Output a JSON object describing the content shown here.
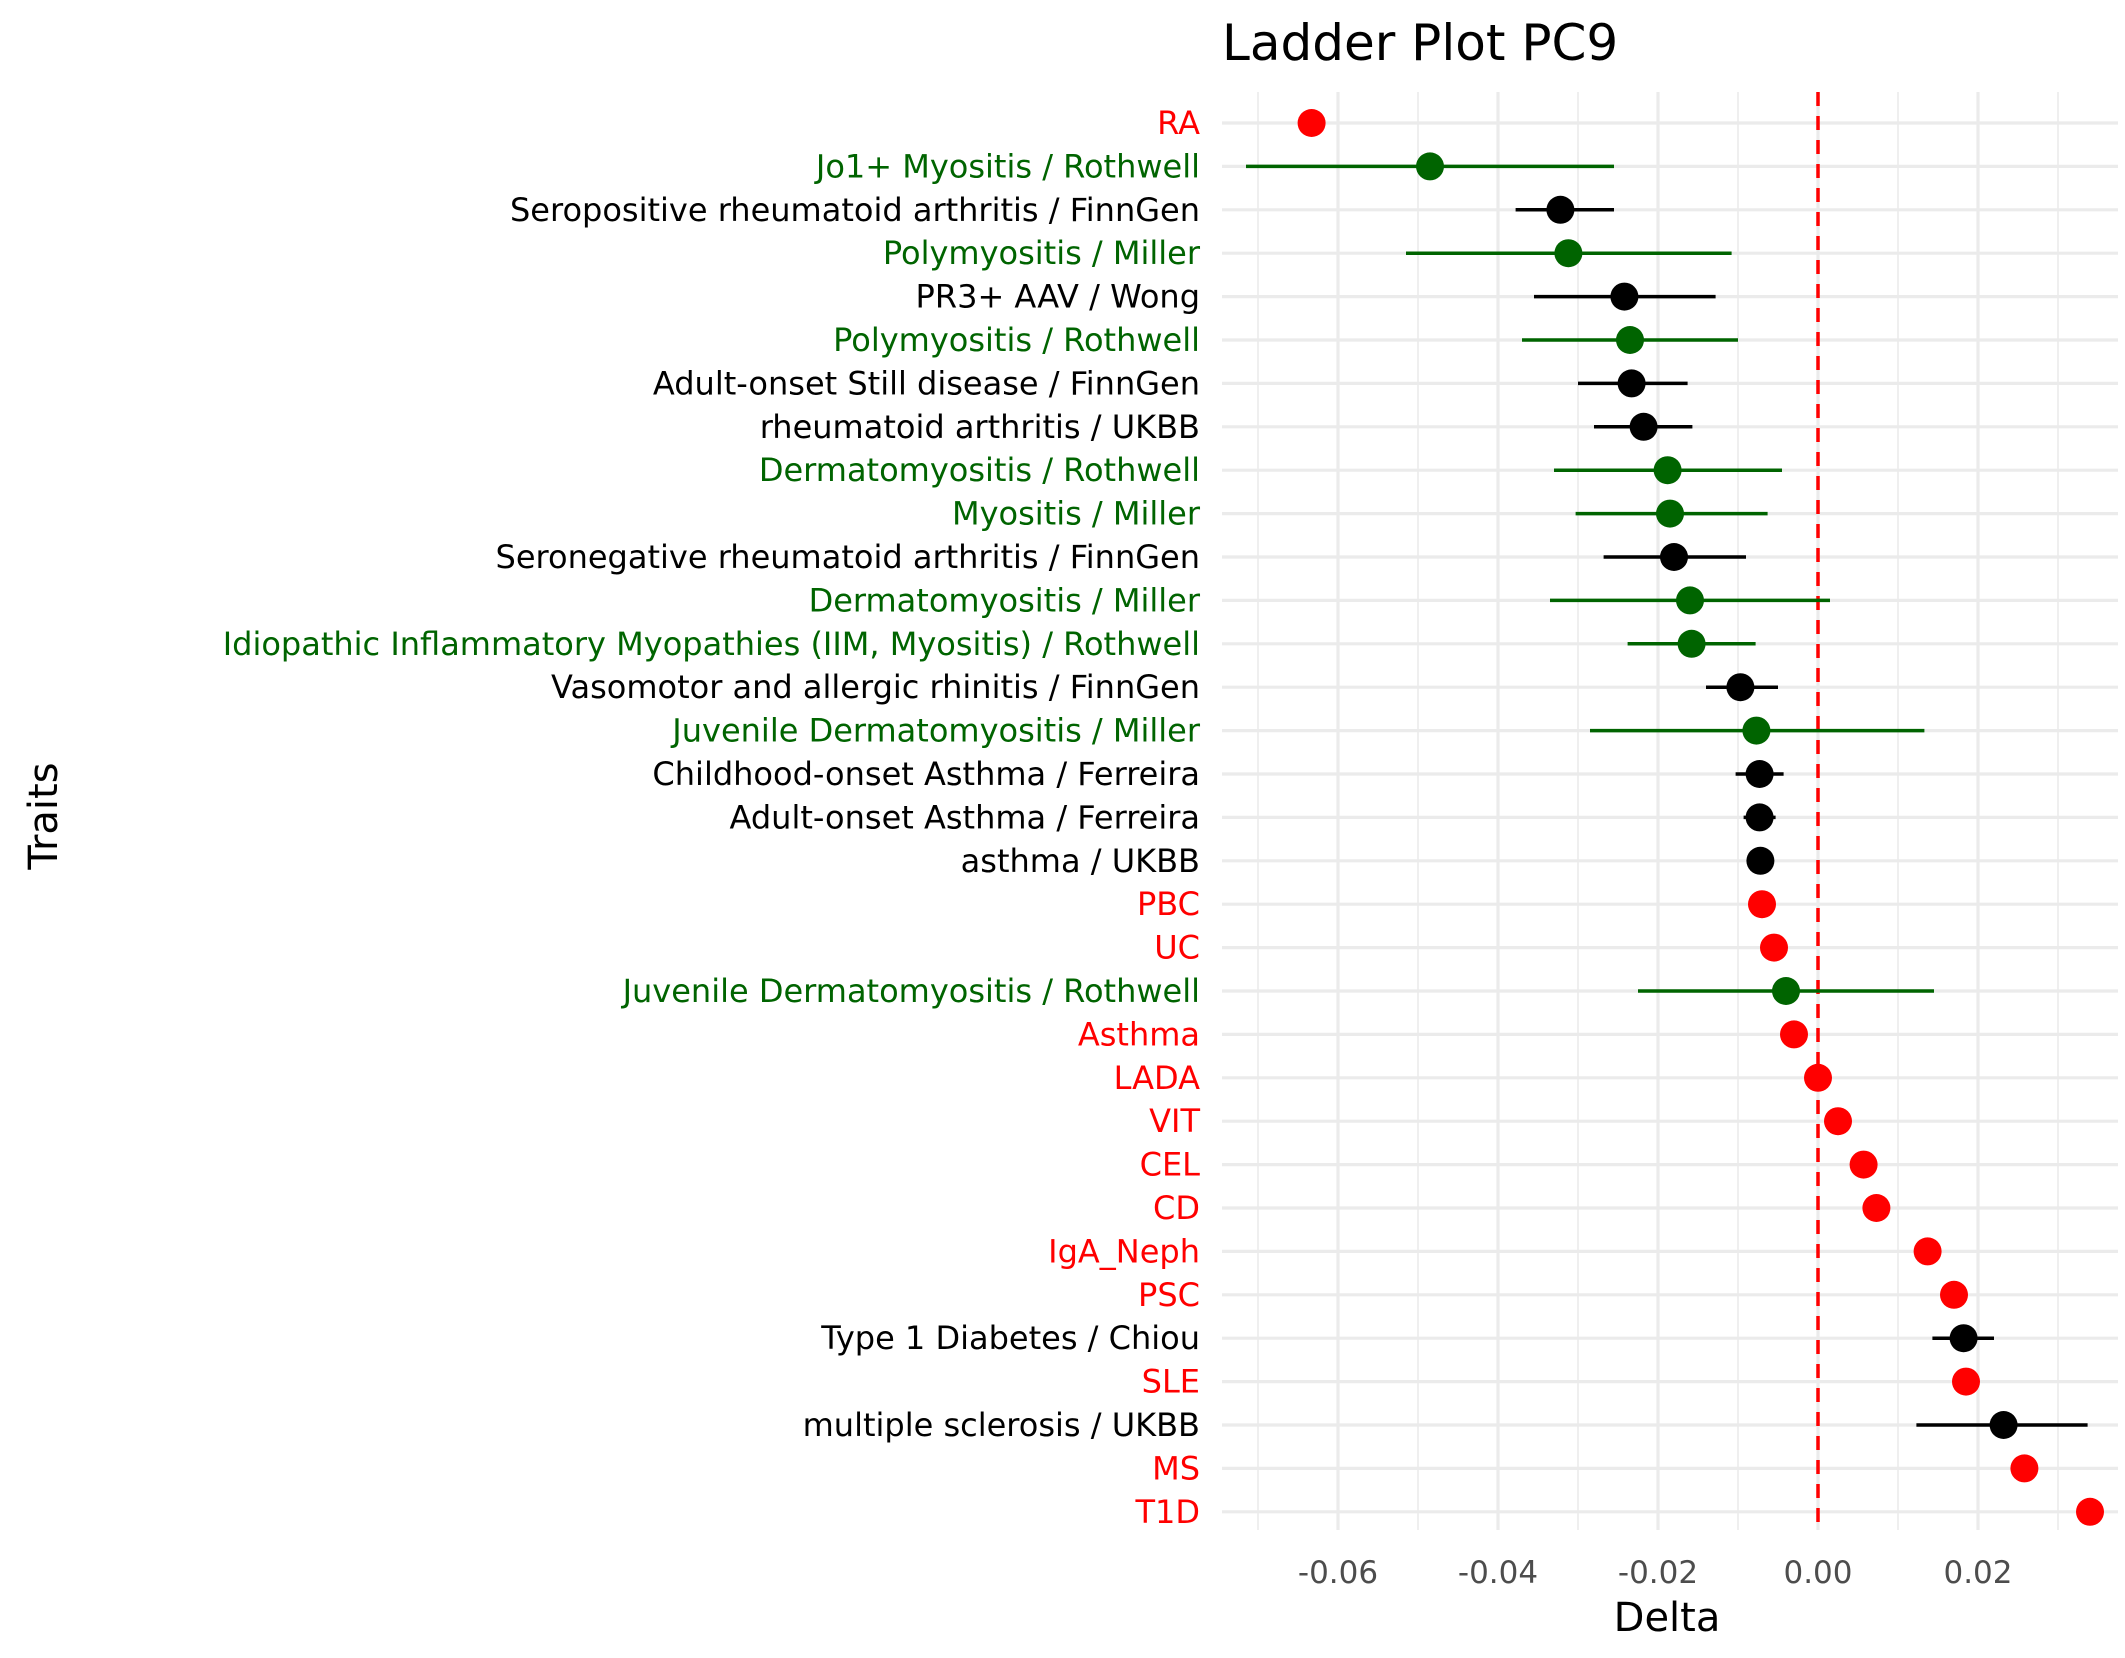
{
  "chart_data": {
    "type": "scatter",
    "title": "Ladder Plot PC9",
    "xlabel": "Delta",
    "ylabel": "Traits",
    "xlim": [
      -0.0745,
      0.0375
    ],
    "x_ticks": [
      -0.06,
      -0.04,
      -0.02,
      0.0,
      0.02
    ],
    "x_tick_labels": [
      "-0.06",
      "-0.04",
      "-0.02",
      "0.00",
      "0.02"
    ],
    "x_minor_ticks": [
      -0.07,
      -0.05,
      -0.03,
      -0.01,
      0.01,
      0.03
    ],
    "grid": true,
    "reference_line": {
      "x": 0,
      "style": "dashed",
      "color": "#ff0000"
    },
    "colors": {
      "red": "#ff0000",
      "green": "#006400",
      "black": "#000000"
    },
    "points": [
      {
        "label": "RA",
        "delta": -0.0633,
        "lo": null,
        "hi": null,
        "color": "red"
      },
      {
        "label": "Jo1+ Myositis / Rothwell",
        "delta": -0.0485,
        "lo": -0.0715,
        "hi": -0.0255,
        "color": "green"
      },
      {
        "label": "Seropositive rheumatoid arthritis / FinnGen",
        "delta": -0.0322,
        "lo": -0.0378,
        "hi": -0.0255,
        "color": "black"
      },
      {
        "label": "Polymyositis / Miller",
        "delta": -0.0312,
        "lo": -0.0515,
        "hi": -0.0108,
        "color": "green"
      },
      {
        "label": "PR3+ AAV / Wong",
        "delta": -0.0242,
        "lo": -0.0355,
        "hi": -0.0128,
        "color": "black"
      },
      {
        "label": "Polymyositis / Rothwell",
        "delta": -0.0235,
        "lo": -0.037,
        "hi": -0.01,
        "color": "green"
      },
      {
        "label": "Adult-onset Still disease / FinnGen",
        "delta": -0.0233,
        "lo": -0.03,
        "hi": -0.0163,
        "color": "black"
      },
      {
        "label": "rheumatoid arthritis / UKBB",
        "delta": -0.0218,
        "lo": -0.028,
        "hi": -0.0157,
        "color": "black"
      },
      {
        "label": "Dermatomyositis / Rothwell",
        "delta": -0.0188,
        "lo": -0.033,
        "hi": -0.0045,
        "color": "green"
      },
      {
        "label": "Myositis / Miller",
        "delta": -0.0185,
        "lo": -0.0303,
        "hi": -0.0063,
        "color": "green"
      },
      {
        "label": "Seronegative rheumatoid arthritis / FinnGen",
        "delta": -0.018,
        "lo": -0.0268,
        "hi": -0.009,
        "color": "black"
      },
      {
        "label": "Dermatomyositis / Miller",
        "delta": -0.016,
        "lo": -0.0335,
        "hi": 0.0015,
        "color": "green"
      },
      {
        "label": "Idiopathic Inflammatory Myopathies (IIM, Myositis) / Rothwell",
        "delta": -0.0158,
        "lo": -0.0238,
        "hi": -0.0078,
        "color": "green"
      },
      {
        "label": "Vasomotor and allergic rhinitis / FinnGen",
        "delta": -0.0097,
        "lo": -0.014,
        "hi": -0.005,
        "color": "black"
      },
      {
        "label": "Juvenile Dermatomyositis / Miller",
        "delta": -0.0077,
        "lo": -0.0285,
        "hi": 0.0133,
        "color": "green"
      },
      {
        "label": "Childhood-onset Asthma / Ferreira",
        "delta": -0.0073,
        "lo": -0.0103,
        "hi": -0.0043,
        "color": "black"
      },
      {
        "label": "Adult-onset Asthma / Ferreira",
        "delta": -0.0073,
        "lo": -0.0093,
        "hi": -0.0053,
        "color": "black"
      },
      {
        "label": "asthma / UKBB",
        "delta": -0.0072,
        "lo": -0.0082,
        "hi": -0.0062,
        "color": "black"
      },
      {
        "label": "PBC",
        "delta": -0.007,
        "lo": null,
        "hi": null,
        "color": "red"
      },
      {
        "label": "UC",
        "delta": -0.0055,
        "lo": null,
        "hi": null,
        "color": "red"
      },
      {
        "label": "Juvenile Dermatomyositis / Rothwell",
        "delta": -0.004,
        "lo": -0.0225,
        "hi": 0.0145,
        "color": "green"
      },
      {
        "label": "Asthma",
        "delta": -0.003,
        "lo": null,
        "hi": null,
        "color": "red"
      },
      {
        "label": "LADA",
        "delta": 0.0,
        "lo": null,
        "hi": null,
        "color": "red"
      },
      {
        "label": "VIT",
        "delta": 0.0025,
        "lo": null,
        "hi": null,
        "color": "red"
      },
      {
        "label": "CEL",
        "delta": 0.0057,
        "lo": null,
        "hi": null,
        "color": "red"
      },
      {
        "label": "CD",
        "delta": 0.0073,
        "lo": null,
        "hi": null,
        "color": "red"
      },
      {
        "label": "IgA_Neph",
        "delta": 0.0137,
        "lo": null,
        "hi": null,
        "color": "red"
      },
      {
        "label": "PSC",
        "delta": 0.017,
        "lo": null,
        "hi": null,
        "color": "red"
      },
      {
        "label": "Type 1 Diabetes / Chiou",
        "delta": 0.0182,
        "lo": 0.0143,
        "hi": 0.022,
        "color": "black"
      },
      {
        "label": "SLE",
        "delta": 0.0185,
        "lo": null,
        "hi": null,
        "color": "red"
      },
      {
        "label": "multiple sclerosis / UKBB",
        "delta": 0.0232,
        "lo": 0.0123,
        "hi": 0.0337,
        "color": "black"
      },
      {
        "label": "MS",
        "delta": 0.0258,
        "lo": null,
        "hi": null,
        "color": "red"
      },
      {
        "label": "T1D",
        "delta": 0.034,
        "lo": null,
        "hi": null,
        "color": "red"
      }
    ]
  }
}
